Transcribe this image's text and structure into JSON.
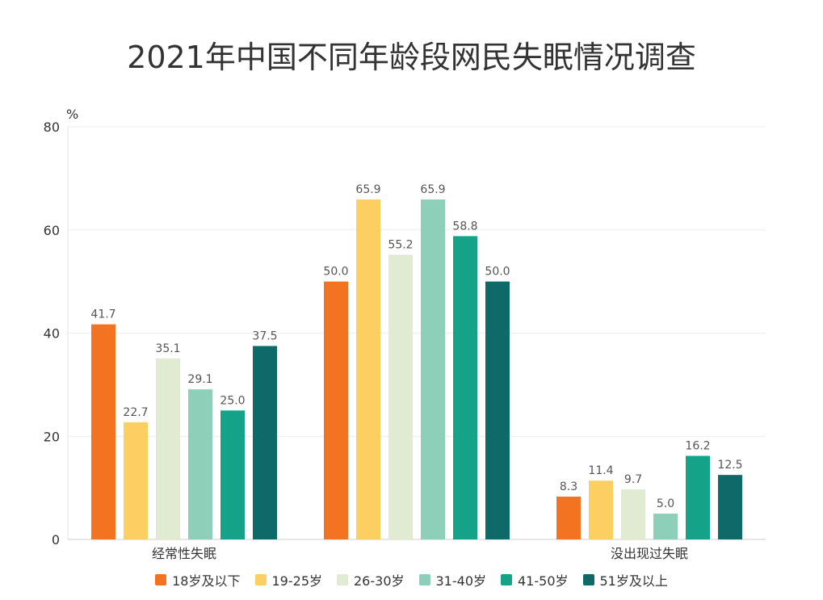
{
  "chart_data": {
    "type": "bar",
    "title": "2021年中国不同年龄段网民失眠情况调查",
    "ylabel": "%",
    "xlabel": "",
    "ylim": [
      0,
      80
    ],
    "yticks": [
      0,
      20,
      40,
      60,
      80
    ],
    "grid": true,
    "legend_position": "bottom",
    "categories": [
      "经常性失眠",
      "",
      "没出现过失眠"
    ],
    "series": [
      {
        "name": "18岁及以下",
        "color": "#F47320",
        "values": [
          41.7,
          50.0,
          8.3
        ]
      },
      {
        "name": "19-25岁",
        "color": "#FCCF63",
        "values": [
          22.7,
          65.9,
          11.4
        ]
      },
      {
        "name": "26-30岁",
        "color": "#E1EBD2",
        "values": [
          35.1,
          55.2,
          9.7
        ]
      },
      {
        "name": "31-40岁",
        "color": "#8DCFB8",
        "values": [
          29.1,
          65.9,
          5.0
        ]
      },
      {
        "name": "41-50岁",
        "color": "#14A389",
        "values": [
          25.0,
          58.8,
          16.2
        ]
      },
      {
        "name": "51岁及以上",
        "color": "#0E6A68",
        "values": [
          37.5,
          50.0,
          12.5
        ]
      }
    ]
  }
}
